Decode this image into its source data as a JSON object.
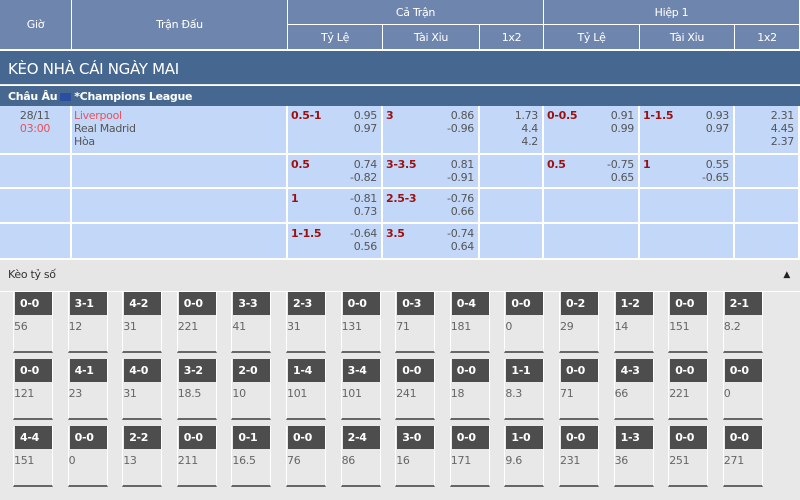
{
  "header": {
    "time": "Giờ",
    "match": "Trận Đấu",
    "full": "Cả Trận",
    "half": "Hiệp 1",
    "hdp": "Tỷ Lệ",
    "ou": "Tài Xỉu",
    "x12": "1x2"
  },
  "banner": "KÈO NHÀ CÁI NGÀY MAI",
  "league": {
    "region": "Châu Âu",
    "name": "*Champions League"
  },
  "match": {
    "date": "28/11",
    "time": "03:00",
    "home": "Liverpool",
    "away": "Real Madrid",
    "draw": "Hòa"
  },
  "rows": [
    {
      "hdp": {
        "line": "0.5-1",
        "a": "0.95",
        "b": "0.97"
      },
      "ou": {
        "line": "3",
        "a": "0.86",
        "b": "-0.96"
      },
      "x12": {
        "a": "1.73",
        "b": "4.4",
        "c": "4.2"
      },
      "h_hdp": {
        "line": "0-0.5",
        "a": "0.91",
        "b": "0.99"
      },
      "h_ou": {
        "line": "1-1.5",
        "a": "0.93",
        "b": "0.97"
      },
      "h_x12": {
        "a": "2.31",
        "b": "4.45",
        "c": "2.37"
      }
    },
    {
      "hdp": {
        "line": "0.5",
        "a": "0.74",
        "b": "-0.82"
      },
      "ou": {
        "line": "3-3.5",
        "a": "0.81",
        "b": "-0.91"
      },
      "h_hdp": {
        "line": "0.5",
        "a": "-0.75",
        "b": "0.65"
      },
      "h_ou": {
        "line": "1",
        "a": "0.55",
        "b": "-0.65"
      }
    },
    {
      "hdp": {
        "line": "1",
        "a": "-0.81",
        "b": "0.73"
      },
      "ou": {
        "line": "2.5-3",
        "a": "-0.76",
        "b": "0.66"
      }
    },
    {
      "hdp": {
        "line": "1-1.5",
        "a": "-0.64",
        "b": "0.56"
      },
      "ou": {
        "line": "3.5",
        "a": "-0.74",
        "b": "0.64"
      }
    }
  ],
  "correct_score": {
    "title": "Kèo tỷ số",
    "toggle_icon": "caret-up-icon",
    "cards": [
      [
        [
          "0-0",
          "56"
        ],
        [
          "3-1",
          "12"
        ],
        [
          "4-2",
          "31"
        ],
        [
          "0-0",
          "221"
        ],
        [
          "3-3",
          "41"
        ],
        [
          "2-3",
          "31"
        ],
        [
          "0-0",
          "131"
        ],
        [
          "0-3",
          "71"
        ],
        [
          "0-4",
          "181"
        ],
        [
          "0-0",
          "0"
        ],
        [
          "0-2",
          "29"
        ],
        [
          "1-2",
          "14"
        ],
        [
          "0-0",
          "151"
        ],
        [
          "2-1",
          "8.2"
        ]
      ],
      [
        [
          "0-0",
          "121"
        ],
        [
          "4-1",
          "23"
        ],
        [
          "4-0",
          "31"
        ],
        [
          "3-2",
          "18.5"
        ],
        [
          "2-0",
          "10"
        ],
        [
          "1-4",
          "101"
        ],
        [
          "3-4",
          "101"
        ],
        [
          "0-0",
          "241"
        ],
        [
          "0-0",
          "18"
        ],
        [
          "1-1",
          "8.3"
        ],
        [
          "0-0",
          "71"
        ],
        [
          "4-3",
          "66"
        ],
        [
          "0-0",
          "221"
        ],
        [
          "0-0",
          "0"
        ]
      ],
      [
        [
          "4-4",
          "151"
        ],
        [
          "0-0",
          "0"
        ],
        [
          "2-2",
          "13"
        ],
        [
          "0-0",
          "211"
        ],
        [
          "0-1",
          "16.5"
        ],
        [
          "0-0",
          "76"
        ],
        [
          "2-4",
          "86"
        ],
        [
          "3-0",
          "16"
        ],
        [
          "0-0",
          "171"
        ],
        [
          "1-0",
          "9.6"
        ],
        [
          "0-0",
          "231"
        ],
        [
          "1-3",
          "36"
        ],
        [
          "0-0",
          "251"
        ],
        [
          "0-0",
          "271"
        ]
      ]
    ]
  },
  "colors": {
    "header": "#6e86ad",
    "banner": "#466790",
    "row": "#c3d8f8",
    "line": "#9b1111",
    "home": "#e8505b"
  }
}
